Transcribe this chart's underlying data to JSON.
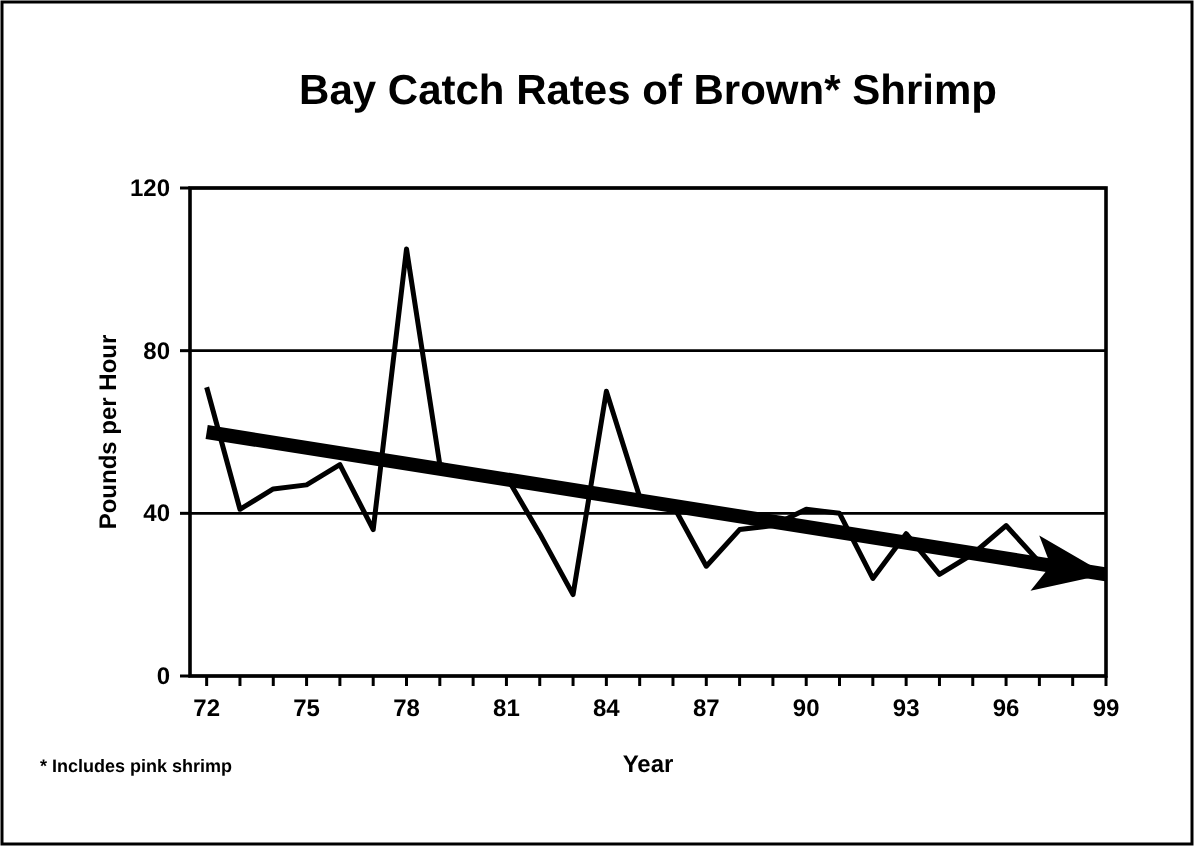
{
  "chart_data": {
    "type": "line",
    "title": "Bay Catch Rates of Brown* Shrimp",
    "xlabel": "Year",
    "ylabel": "Pounds per Hour",
    "annotations": [
      "* Includes pink shrimp"
    ],
    "x": [
      72,
      73,
      74,
      75,
      76,
      77,
      78,
      79,
      80,
      81,
      82,
      83,
      84,
      85,
      86,
      87,
      88,
      89,
      90,
      91,
      92,
      93,
      94,
      95,
      96,
      97
    ],
    "series": [
      {
        "color": "#000000",
        "values": [
          71,
          41,
          46,
          47,
          52,
          36,
          105,
          52,
          50,
          49,
          35,
          20,
          70,
          44,
          42,
          27,
          36,
          37,
          41,
          40,
          24,
          35,
          25,
          30,
          37,
          28
        ]
      },
      {
        "type": "line",
        "color": "#000000",
        "x": [
          72,
          99
        ],
        "values": [
          60,
          25
        ]
      }
    ],
    "xlim": [
      71.5,
      99
    ],
    "ylim": [
      0,
      120
    ],
    "xticks": [
      72,
      {
        "value": 73,
        "label": null
      },
      {
        "value": 74,
        "label": null
      },
      75,
      {
        "value": 76,
        "label": null
      },
      {
        "value": 77,
        "label": null
      },
      78,
      {
        "value": 79,
        "label": null
      },
      {
        "value": 80,
        "label": null
      },
      81,
      {
        "value": 82,
        "label": null
      },
      {
        "value": 83,
        "label": null
      },
      84,
      {
        "value": 85,
        "label": null
      },
      {
        "value": 86,
        "label": null
      },
      87,
      {
        "value": 88,
        "label": null
      },
      {
        "value": 89,
        "label": null
      },
      90,
      {
        "value": 91,
        "label": null
      },
      {
        "value": 92,
        "label": null
      },
      93,
      {
        "value": 94,
        "label": null
      },
      {
        "value": 95,
        "label": null
      },
      96,
      {
        "value": 97,
        "label": null
      },
      {
        "value": 98,
        "label": null
      },
      99
    ],
    "yticks": [
      0,
      40,
      80,
      120
    ],
    "grid": "y",
    "marker": "none",
    "line_style": "solid"
  }
}
